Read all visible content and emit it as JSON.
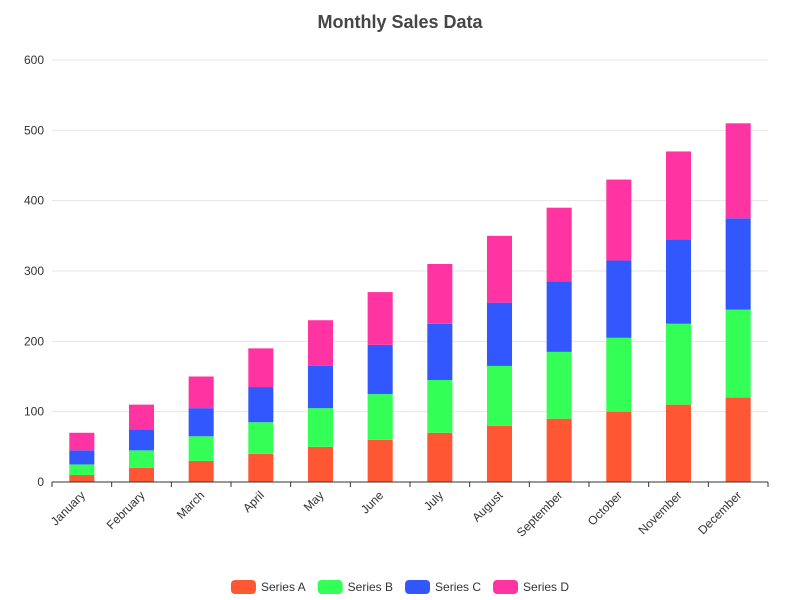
{
  "chart_data": {
    "type": "bar",
    "stacked": true,
    "title": "Monthly Sales Data",
    "categories": [
      "January",
      "February",
      "March",
      "April",
      "May",
      "June",
      "July",
      "August",
      "September",
      "October",
      "November",
      "December"
    ],
    "series": [
      {
        "name": "Series A",
        "color": "#ff5733",
        "values": [
          10,
          20,
          30,
          40,
          50,
          60,
          70,
          80,
          90,
          100,
          110,
          120
        ]
      },
      {
        "name": "Series B",
        "color": "#33ff57",
        "values": [
          15,
          25,
          35,
          45,
          55,
          65,
          75,
          85,
          95,
          105,
          115,
          125
        ]
      },
      {
        "name": "Series C",
        "color": "#3357ff",
        "values": [
          20,
          30,
          40,
          50,
          60,
          70,
          80,
          90,
          100,
          110,
          120,
          130
        ]
      },
      {
        "name": "Series D",
        "color": "#ff33a1",
        "values": [
          25,
          35,
          45,
          55,
          65,
          75,
          85,
          95,
          105,
          115,
          125,
          135
        ]
      }
    ],
    "ylim": [
      0,
      600
    ],
    "yticks": [
      0,
      100,
      200,
      300,
      400,
      500,
      600
    ],
    "grid": true,
    "legend_position": "bottom-center"
  }
}
